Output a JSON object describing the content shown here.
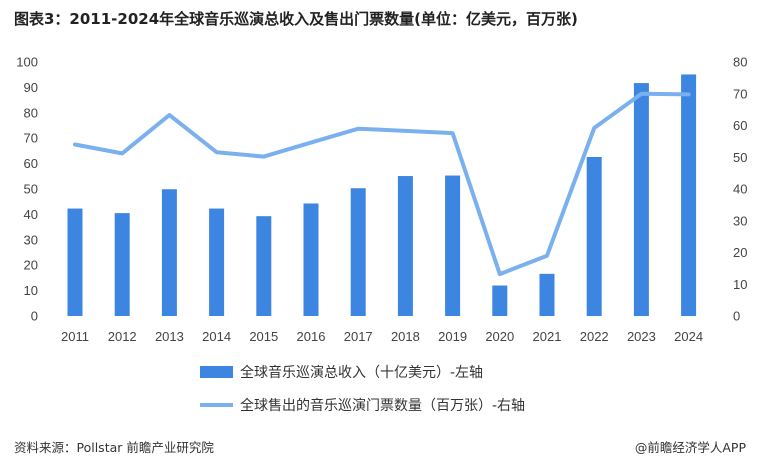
{
  "title": "图表3：2011-2024年全球音乐巡演总收入及售出门票数量(单位：亿美元，百万张)",
  "source": "资料来源：Pollstar 前瞻产业研究院",
  "credit": "@前瞻经济学人APP",
  "colors": {
    "bar": "#3c85e0",
    "line": "#7ab0ee"
  },
  "chart_data": {
    "type": "bar",
    "categories": [
      "2011",
      "2012",
      "2013",
      "2014",
      "2015",
      "2016",
      "2017",
      "2018",
      "2019",
      "2020",
      "2021",
      "2022",
      "2023",
      "2024"
    ],
    "series": [
      {
        "name": "全球音乐巡演总收入（十亿美元）-左轴",
        "type": "bar",
        "axis": "left",
        "values": [
          42.3,
          40.5,
          49.9,
          42.3,
          39.3,
          44.3,
          50.3,
          55.1,
          55.3,
          12.0,
          16.6,
          62.6,
          91.7,
          95.1
        ]
      },
      {
        "name": "全球售出的音乐巡演门票数量（百万张）-右轴",
        "type": "line",
        "axis": "right",
        "values": [
          54.0,
          51.2,
          63.3,
          51.6,
          50.2,
          54.6,
          59.0,
          58.3,
          57.6,
          13.2,
          19.0,
          59.2,
          70.0,
          69.8
        ]
      }
    ],
    "y_left": {
      "ylim": [
        0,
        100
      ],
      "ticks": [
        "0",
        "10",
        "20",
        "30",
        "40",
        "50",
        "60",
        "70",
        "80",
        "90",
        "100"
      ]
    },
    "y_right": {
      "ylim": [
        0,
        80
      ],
      "ticks": [
        "0",
        "10",
        "20",
        "30",
        "40",
        "50",
        "60",
        "70",
        "80"
      ]
    },
    "legend_position": "bottom-left",
    "grid": false
  }
}
